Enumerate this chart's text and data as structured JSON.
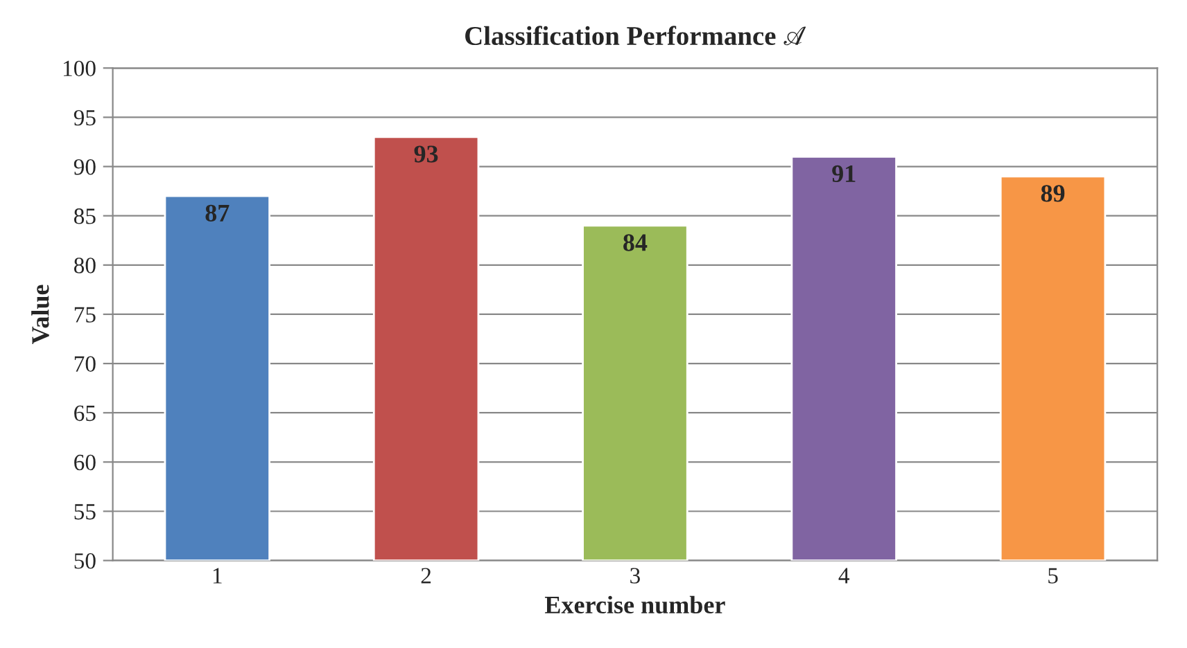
{
  "chart_data": {
    "type": "bar",
    "title": "Classification Performance 𝒜",
    "xlabel": "Exercise number",
    "ylabel": "Value",
    "categories": [
      "1",
      "2",
      "3",
      "4",
      "5"
    ],
    "values": [
      87,
      93,
      84,
      91,
      89
    ],
    "colors": [
      "#4f81bd",
      "#c0504d",
      "#9bbb59",
      "#8064a2",
      "#f79646"
    ],
    "ylim": [
      50,
      100
    ],
    "yticks": [
      50,
      55,
      60,
      65,
      70,
      75,
      80,
      85,
      90,
      95,
      100
    ],
    "grid": "y",
    "data_labels": true,
    "legend": false
  }
}
